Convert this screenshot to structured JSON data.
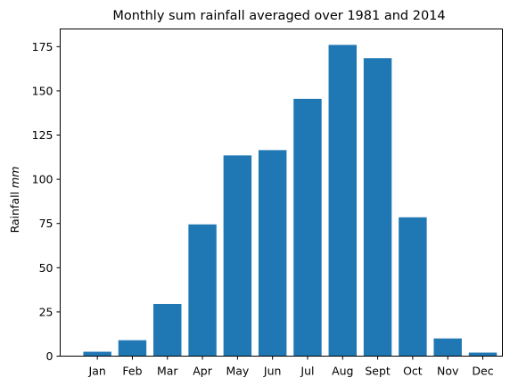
{
  "chart_data": {
    "type": "bar",
    "title": "Monthly sum rainfall averaged over 1981 and 2014",
    "xlabel": "",
    "ylabel": "Rainfall",
    "ylabel_unit": "mm",
    "categories": [
      "Jan",
      "Feb",
      "Mar",
      "Apr",
      "May",
      "Jun",
      "Jul",
      "Aug",
      "Sept",
      "Oct",
      "Nov",
      "Dec"
    ],
    "values": [
      2.5,
      9,
      29.5,
      74.5,
      113.5,
      116.5,
      145.5,
      176,
      168.5,
      78.5,
      10,
      2
    ],
    "ylim": [
      0,
      185
    ],
    "yticks": [
      0,
      25,
      50,
      75,
      100,
      125,
      150,
      175
    ],
    "grid": false,
    "legend": "none",
    "bar_color": "#1f77b4"
  }
}
